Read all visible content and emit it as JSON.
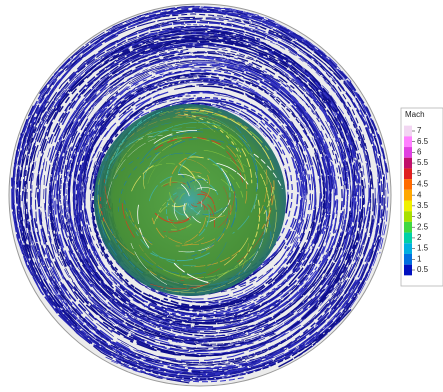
{
  "colorbar": {
    "title": "Mach",
    "ticks": [
      7,
      6.5,
      6,
      5.5,
      5,
      4.5,
      4,
      3.5,
      3,
      2.5,
      2,
      1.5,
      1,
      0.5
    ],
    "colors": [
      "#f2d6f2",
      "#ff80ff",
      "#e040e0",
      "#c0106a",
      "#e02020",
      "#ff6a00",
      "#ffa800",
      "#f0f000",
      "#a8e000",
      "#40d840",
      "#00d0a8",
      "#00b0e0",
      "#0070e0",
      "#0010c0"
    ]
  }
}
